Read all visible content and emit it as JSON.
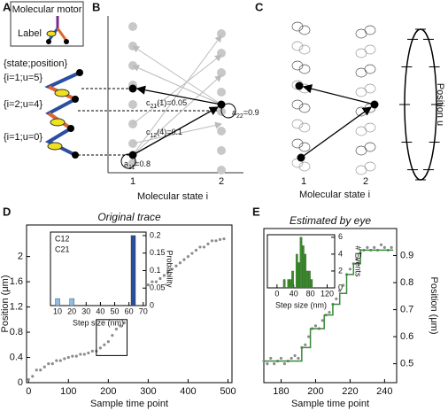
{
  "panel_a": {
    "letter": "A",
    "box_title": "Molecular motor",
    "label": "Label",
    "header": "{state;position}",
    "states": [
      "{i=1;u=5}",
      "{i=2;u=4}",
      "{i=1;u=0}"
    ]
  },
  "panel_b": {
    "letter": "B",
    "x_label": "Molecular state i",
    "xticks": [
      "1",
      "2"
    ],
    "annotations": [
      {
        "base": "c",
        "sub": "21",
        "rest": "(1)=0.05"
      },
      {
        "base": "c",
        "sub": "12",
        "rest": "(4)=0.1"
      },
      {
        "base": "a",
        "sub": "11",
        "rest": "=0.8"
      },
      {
        "base": "a",
        "sub": "22",
        "rest": "=0.9"
      }
    ]
  },
  "panel_c": {
    "letter": "C",
    "x_label": "Molecular state i",
    "xticks": [
      "1",
      "2"
    ],
    "y_label": "Position u"
  },
  "chart_data": [
    {
      "type": "scatter",
      "panel": "D",
      "title": "Original trace",
      "x_label": "Sample time point",
      "y_label": "Position (μm)",
      "color": "#8c8c8c",
      "x": [
        0,
        10,
        20,
        30,
        40,
        50,
        60,
        70,
        80,
        90,
        100,
        110,
        120,
        130,
        140,
        150,
        160,
        170,
        180,
        190,
        200,
        210,
        220,
        230,
        240,
        250,
        260,
        270,
        280,
        290,
        300,
        310,
        320,
        330,
        340,
        350,
        360,
        370,
        380,
        390,
        400,
        410,
        420,
        430,
        440,
        450,
        460,
        470,
        480,
        490
      ],
      "values": [
        0.05,
        0.1,
        0.2,
        0.2,
        0.25,
        0.3,
        0.3,
        0.35,
        0.35,
        0.38,
        0.4,
        0.42,
        0.42,
        0.45,
        0.45,
        0.47,
        0.5,
        0.5,
        0.55,
        0.6,
        0.65,
        0.75,
        0.85,
        0.9,
        0.95,
        1.3,
        1.35,
        1.4,
        1.45,
        1.5,
        1.55,
        1.6,
        1.6,
        1.65,
        1.7,
        1.75,
        1.8,
        1.85,
        1.9,
        1.95,
        2.0,
        2.05,
        2.1,
        2.15,
        2.15,
        2.2,
        2.25,
        2.25,
        2.27,
        2.28
      ],
      "xlim": [
        -5,
        510
      ],
      "ylim": [
        0,
        2.5
      ],
      "xticks": [
        0,
        100,
        200,
        300,
        400,
        500
      ],
      "yticks": [
        0,
        0.4,
        0.8,
        1.2,
        1.6,
        2
      ],
      "y_axis_side": "left"
    },
    {
      "type": "bar",
      "x_label": "Step size (nm)",
      "y_label": "Probability",
      "series": [
        {
          "name": "C12",
          "color": "#8fbde6",
          "x": [
            10,
            20
          ],
          "values": [
            0.02,
            0.02
          ]
        },
        {
          "name": "C21",
          "color": "#2a4d9c",
          "x": [
            63
          ],
          "values": [
            0.2
          ]
        }
      ],
      "xlim": [
        5,
        72
      ],
      "ylim": [
        0,
        0.21
      ],
      "xticks": [
        10,
        20,
        30,
        40,
        50,
        60,
        70
      ],
      "yticks": [
        0,
        0.05,
        0.1,
        0.15,
        0.2
      ],
      "y_axis_side": "right"
    },
    {
      "type": "scatter",
      "panel": "E",
      "title": "Estimated by eye",
      "x_label": "Sample time point",
      "y_label": "Position (μm)",
      "series": [
        {
          "color": "#8c8c8c",
          "x": [
            170,
            172,
            174,
            176,
            178,
            180,
            182,
            184,
            186,
            188,
            190,
            192,
            194,
            196,
            198,
            200,
            202,
            204,
            206,
            208,
            210,
            212,
            214,
            216,
            218,
            220,
            222,
            224,
            226,
            228,
            230,
            232,
            234,
            236,
            238,
            240,
            242,
            244
          ],
          "values": [
            0.51,
            0.5,
            0.52,
            0.5,
            0.51,
            0.52,
            0.5,
            0.51,
            0.52,
            0.53,
            0.52,
            0.56,
            0.57,
            0.6,
            0.63,
            0.64,
            0.63,
            0.66,
            0.68,
            0.69,
            0.72,
            0.74,
            0.77,
            0.79,
            0.83,
            0.85,
            0.87,
            0.89,
            0.91,
            0.92,
            0.93,
            0.92,
            0.93,
            0.92,
            0.94,
            0.93,
            0.92,
            0.93
          ]
        },
        {
          "type": "line",
          "color": "#3a8a3a",
          "x": [
            170,
            192,
            192,
            197,
            197,
            205,
            205,
            210,
            210,
            214,
            214,
            218,
            218,
            222,
            222,
            226,
            226,
            245
          ],
          "values": [
            0.51,
            0.51,
            0.56,
            0.56,
            0.63,
            0.63,
            0.68,
            0.68,
            0.72,
            0.72,
            0.76,
            0.76,
            0.83,
            0.83,
            0.87,
            0.87,
            0.92,
            0.92
          ]
        }
      ],
      "xlim": [
        170,
        247
      ],
      "ylim": [
        0.43,
        1.0
      ],
      "xticks": [
        180,
        200,
        220,
        240
      ],
      "yticks": [
        0.5,
        0.6,
        0.7,
        0.8,
        0.9
      ],
      "y_axis_side": "right"
    },
    {
      "type": "histogram",
      "x_label": "Step size (nm)",
      "y_label": "# Events",
      "color": "#3d8a2e",
      "bins": [
        15,
        20,
        25,
        30,
        35,
        40,
        45,
        50,
        55,
        60,
        65,
        70,
        75,
        80,
        85,
        90
      ],
      "values": [
        1,
        0,
        1,
        1,
        2,
        0,
        4,
        3,
        6,
        5,
        4,
        2,
        2,
        1,
        0
      ],
      "xlim": [
        -23,
        138
      ],
      "ylim": [
        0,
        6.3
      ],
      "xticks": [
        0,
        40,
        80,
        120
      ],
      "yticks": [
        0,
        2,
        4,
        6
      ],
      "y_axis_side": "right"
    }
  ]
}
